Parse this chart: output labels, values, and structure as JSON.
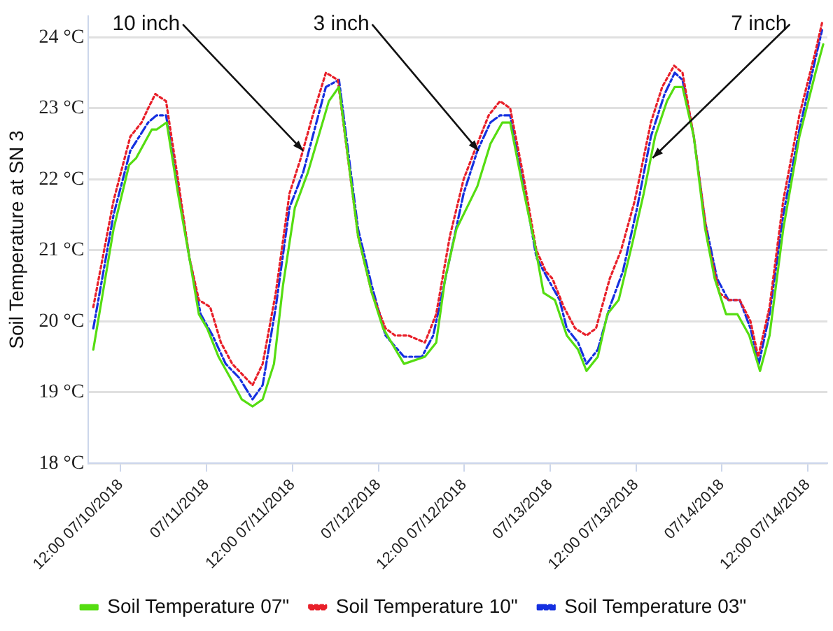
{
  "chart_data": {
    "type": "line",
    "ylabel": "Soil Temperature at SN 3",
    "xlim": [
      "2018-07-10T07:30",
      "2018-07-14T14:45"
    ],
    "xticks": [
      {
        "value": "2018-07-10T12:00",
        "label": "12:00 07/10/2018"
      },
      {
        "value": "2018-07-11T00:00",
        "label": "07/11/2018"
      },
      {
        "value": "2018-07-11T12:00",
        "label": "12:00 07/11/2018"
      },
      {
        "value": "2018-07-12T00:00",
        "label": "07/12/2018"
      },
      {
        "value": "2018-07-12T12:00",
        "label": "12:00 07/12/2018"
      },
      {
        "value": "2018-07-13T00:00",
        "label": "07/13/2018"
      },
      {
        "value": "2018-07-13T12:00",
        "label": "12:00 07/13/2018"
      },
      {
        "value": "2018-07-14T00:00",
        "label": "07/14/2018"
      },
      {
        "value": "2018-07-14T12:00",
        "label": "12:00 07/14/2018"
      }
    ],
    "ylim": [
      18,
      24.3
    ],
    "yticks": [
      {
        "value": 18,
        "label": "18 °C"
      },
      {
        "value": 19,
        "label": "19 °C"
      },
      {
        "value": 20,
        "label": "20 °C"
      },
      {
        "value": 21,
        "label": "21 °C"
      },
      {
        "value": 22,
        "label": "22 °C"
      },
      {
        "value": 23,
        "label": "23 °C"
      },
      {
        "value": 24,
        "label": "24 °C"
      }
    ],
    "grid": "y",
    "legend": "bottom",
    "marker": "none",
    "annotations": [
      {
        "text": "10 inch",
        "x": "2018-07-11T13:30",
        "y": 22.4
      },
      {
        "text": "3 inch",
        "x": "2018-07-12T14:00",
        "y": 22.4
      },
      {
        "text": "7 inch",
        "x": "2018-07-13T14:20",
        "y": 22.3
      }
    ],
    "series": [
      {
        "name": "Soil Temperature 07\"",
        "color": "#55dd11",
        "line_style": "solid",
        "x": [
          "2018-07-10T08:10",
          "2018-07-10T11:00",
          "2018-07-10T13:10",
          "2018-07-10T14:10",
          "2018-07-10T16:20",
          "2018-07-10T17:00",
          "2018-07-10T18:25",
          "2018-07-10T20:00",
          "2018-07-10T21:35",
          "2018-07-10T22:55",
          "2018-07-11T00:05",
          "2018-07-11T01:40",
          "2018-07-11T03:20",
          "2018-07-11T04:55",
          "2018-07-11T06:25",
          "2018-07-11T07:50",
          "2018-07-11T09:25",
          "2018-07-11T10:40",
          "2018-07-11T12:20",
          "2018-07-11T14:10",
          "2018-07-11T17:05",
          "2018-07-11T18:30",
          "2018-07-11T21:10",
          "2018-07-11T23:05",
          "2018-07-12T00:40",
          "2018-07-12T03:35",
          "2018-07-12T06:30",
          "2018-07-12T08:05",
          "2018-07-12T09:20",
          "2018-07-12T10:55",
          "2018-07-12T13:50",
          "2018-07-12T15:40",
          "2018-07-12T17:20",
          "2018-07-12T18:25",
          "2018-07-12T20:10",
          "2018-07-12T21:50",
          "2018-07-12T23:05",
          "2018-07-13T00:40",
          "2018-07-13T02:20",
          "2018-07-13T03:55",
          "2018-07-13T05:05",
          "2018-07-13T06:40",
          "2018-07-13T08:00",
          "2018-07-13T09:35",
          "2018-07-13T11:30",
          "2018-07-13T13:05",
          "2018-07-13T14:40",
          "2018-07-13T16:20",
          "2018-07-13T17:25",
          "2018-07-13T18:30",
          "2018-07-13T20:05",
          "2018-07-13T21:40",
          "2018-07-13T23:00",
          "2018-07-14T00:35",
          "2018-07-14T02:10",
          "2018-07-14T03:50",
          "2018-07-14T05:20",
          "2018-07-14T06:40",
          "2018-07-14T08:35",
          "2018-07-14T10:50",
          "2018-07-14T13:05",
          "2018-07-14T14:10"
        ],
        "values": [
          19.6,
          21.3,
          22.2,
          22.3,
          22.7,
          22.7,
          22.8,
          21.8,
          20.9,
          20.1,
          19.9,
          19.5,
          19.2,
          18.9,
          18.8,
          18.9,
          19.4,
          20.5,
          21.6,
          22.1,
          23.1,
          23.3,
          21.2,
          20.4,
          19.9,
          19.4,
          19.5,
          19.7,
          20.6,
          21.3,
          21.9,
          22.5,
          22.8,
          22.8,
          21.9,
          21.1,
          20.4,
          20.3,
          19.8,
          19.6,
          19.3,
          19.5,
          20.1,
          20.3,
          21.1,
          21.8,
          22.6,
          23.1,
          23.3,
          23.3,
          22.6,
          21.3,
          20.6,
          20.1,
          20.1,
          19.8,
          19.3,
          19.8,
          21.3,
          22.6,
          23.5,
          23.9
        ]
      },
      {
        "name": "Soil Temperature 10\"",
        "color": "#e8202a",
        "line_style": "dotted",
        "x": [
          "2018-07-10T08:10",
          "2018-07-10T11:00",
          "2018-07-10T13:20",
          "2018-07-10T14:55",
          "2018-07-10T15:50",
          "2018-07-10T16:50",
          "2018-07-10T18:20",
          "2018-07-10T20:00",
          "2018-07-10T21:35",
          "2018-07-10T22:55",
          "2018-07-11T00:30",
          "2018-07-11T02:00",
          "2018-07-11T03:35",
          "2018-07-11T06:25",
          "2018-07-11T07:50",
          "2018-07-11T09:40",
          "2018-07-11T11:35",
          "2018-07-11T13:10",
          "2018-07-11T14:50",
          "2018-07-11T16:40",
          "2018-07-11T18:20",
          "2018-07-11T21:10",
          "2018-07-11T23:05",
          "2018-07-12T01:00",
          "2018-07-12T02:20",
          "2018-07-12T04:10",
          "2018-07-12T06:30",
          "2018-07-12T08:05",
          "2018-07-12T10:00",
          "2018-07-12T11:55",
          "2018-07-12T13:50",
          "2018-07-12T15:25",
          "2018-07-12T17:00",
          "2018-07-12T18:25",
          "2018-07-12T20:10",
          "2018-07-12T22:05",
          "2018-07-12T23:25",
          "2018-07-13T00:20",
          "2018-07-13T01:55",
          "2018-07-13T03:30",
          "2018-07-13T05:05",
          "2018-07-13T06:25",
          "2018-07-13T08:20",
          "2018-07-13T09:55",
          "2018-07-13T11:50",
          "2018-07-13T14:05",
          "2018-07-13T15:40",
          "2018-07-13T17:20",
          "2018-07-13T18:30",
          "2018-07-13T20:05",
          "2018-07-13T22:05",
          "2018-07-13T23:40",
          "2018-07-14T00:55",
          "2018-07-14T02:30",
          "2018-07-14T04:00",
          "2018-07-14T05:05",
          "2018-07-14T06:40",
          "2018-07-14T08:35",
          "2018-07-14T10:50",
          "2018-07-14T13:05",
          "2018-07-14T14:00"
        ],
        "values": [
          20.2,
          21.7,
          22.6,
          22.8,
          23.0,
          23.2,
          23.1,
          22.0,
          20.9,
          20.3,
          20.2,
          19.7,
          19.4,
          19.1,
          19.4,
          20.4,
          21.8,
          22.3,
          22.9,
          23.5,
          23.4,
          21.2,
          20.4,
          19.9,
          19.8,
          19.8,
          19.7,
          20.1,
          21.2,
          22.0,
          22.5,
          22.9,
          23.1,
          23.0,
          22.1,
          21.0,
          20.7,
          20.6,
          20.2,
          19.9,
          19.8,
          19.9,
          20.6,
          21.0,
          21.7,
          22.8,
          23.3,
          23.6,
          23.5,
          22.6,
          21.1,
          20.4,
          20.3,
          20.3,
          20.0,
          19.5,
          20.2,
          21.7,
          22.9,
          23.8,
          24.2
        ]
      },
      {
        "name": "Soil Temperature 03\"",
        "color": "#1530e0",
        "line_style": "dashed",
        "x": [
          "2018-07-10T08:10",
          "2018-07-10T11:00",
          "2018-07-10T13:20",
          "2018-07-10T15:50",
          "2018-07-10T17:00",
          "2018-07-10T18:20",
          "2018-07-10T20:00",
          "2018-07-10T21:35",
          "2018-07-10T23:10",
          "2018-07-11T00:50",
          "2018-07-11T02:40",
          "2018-07-11T04:35",
          "2018-07-11T06:25",
          "2018-07-11T07:50",
          "2018-07-11T09:40",
          "2018-07-11T11:35",
          "2018-07-11T13:30",
          "2018-07-11T16:40",
          "2018-07-11T18:30",
          "2018-07-11T21:10",
          "2018-07-11T23:05",
          "2018-07-12T01:00",
          "2018-07-12T03:35",
          "2018-07-12T06:05",
          "2018-07-12T07:40",
          "2018-07-12T10:00",
          "2018-07-12T11:55",
          "2018-07-12T13:50",
          "2018-07-12T15:40",
          "2018-07-12T17:00",
          "2018-07-12T18:25",
          "2018-07-12T20:10",
          "2018-07-12T22:05",
          "2018-07-12T23:40",
          "2018-07-13T01:20",
          "2018-07-13T02:20",
          "2018-07-13T03:55",
          "2018-07-13T05:05",
          "2018-07-13T06:40",
          "2018-07-13T08:20",
          "2018-07-13T10:10",
          "2018-07-13T12:10",
          "2018-07-13T14:05",
          "2018-07-13T16:00",
          "2018-07-13T17:25",
          "2018-07-13T18:30",
          "2018-07-13T20:05",
          "2018-07-13T21:40",
          "2018-07-13T23:20",
          "2018-07-14T00:55",
          "2018-07-14T02:30",
          "2018-07-14T04:00",
          "2018-07-14T05:10",
          "2018-07-14T06:40",
          "2018-07-14T08:35",
          "2018-07-14T10:50",
          "2018-07-14T13:05",
          "2018-07-14T14:00"
        ],
        "values": [
          19.9,
          21.5,
          22.4,
          22.8,
          22.9,
          22.9,
          21.9,
          20.9,
          20.1,
          19.8,
          19.4,
          19.2,
          18.9,
          19.1,
          20.2,
          21.6,
          22.1,
          23.3,
          23.4,
          21.3,
          20.5,
          19.8,
          19.5,
          19.5,
          19.8,
          20.9,
          21.8,
          22.4,
          22.8,
          22.9,
          22.9,
          22.0,
          20.9,
          20.6,
          20.3,
          19.9,
          19.7,
          19.4,
          19.6,
          20.2,
          20.7,
          21.6,
          22.6,
          23.2,
          23.5,
          23.4,
          22.6,
          21.4,
          20.6,
          20.3,
          20.3,
          19.9,
          19.4,
          20.1,
          21.5,
          22.7,
          23.7,
          24.1
        ]
      }
    ]
  }
}
